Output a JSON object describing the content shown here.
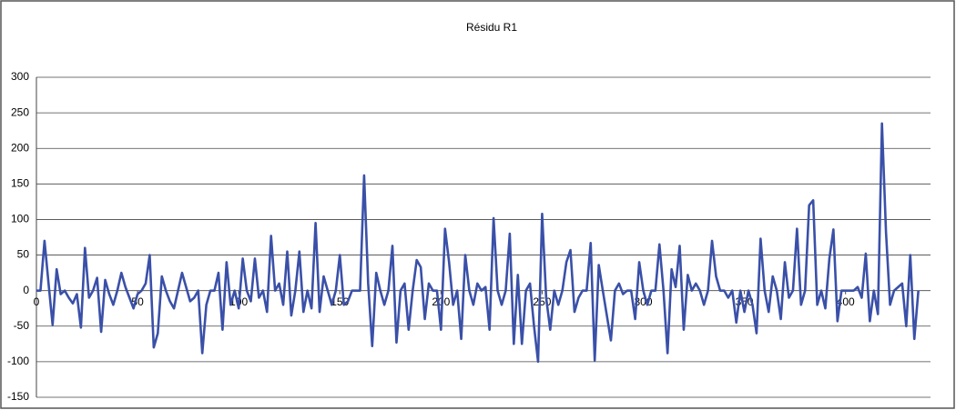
{
  "chart_data": {
    "type": "line",
    "title": "Résidu R1",
    "x": [
      0,
      2,
      4,
      6,
      8,
      10,
      12,
      14,
      16,
      18,
      20,
      22,
      24,
      26,
      28,
      30,
      32,
      34,
      36,
      38,
      40,
      42,
      44,
      46,
      48,
      50,
      52,
      54,
      56,
      58,
      60,
      62,
      64,
      66,
      68,
      70,
      72,
      74,
      76,
      78,
      80,
      82,
      84,
      86,
      88,
      90,
      92,
      94,
      96,
      98,
      100,
      102,
      104,
      106,
      108,
      110,
      112,
      114,
      116,
      118,
      120,
      122,
      124,
      126,
      128,
      130,
      132,
      134,
      136,
      138,
      140,
      142,
      144,
      146,
      148,
      150,
      152,
      154,
      156,
      158,
      160,
      162,
      164,
      166,
      168,
      170,
      172,
      174,
      176,
      178,
      180,
      182,
      184,
      186,
      188,
      190,
      192,
      194,
      196,
      198,
      200,
      202,
      204,
      206,
      208,
      210,
      212,
      214,
      216,
      218,
      220,
      222,
      224,
      226,
      228,
      230,
      232,
      234,
      236,
      238,
      240,
      242,
      244,
      246,
      248,
      250,
      252,
      254,
      256,
      258,
      260,
      262,
      264,
      266,
      268,
      270,
      272,
      274,
      276,
      278,
      280,
      282,
      284,
      286,
      288,
      290,
      292,
      294,
      296,
      298,
      300,
      302,
      304,
      306,
      308,
      310,
      312,
      314,
      316,
      318,
      320,
      322,
      324,
      326,
      328,
      330,
      332,
      334,
      336,
      338,
      340,
      342,
      344,
      346,
      348,
      350,
      352,
      354,
      356,
      358,
      360,
      362,
      364,
      366,
      368,
      370,
      372,
      374,
      376,
      378,
      380,
      382,
      384,
      386,
      388,
      390,
      392,
      394,
      396,
      398,
      400,
      402,
      404,
      406,
      408,
      410,
      412,
      414,
      416,
      418,
      420,
      422,
      424,
      426,
      428,
      430,
      432,
      434,
      436
    ],
    "series": [
      {
        "name": "Résidu R1",
        "color": "#3a50a8",
        "values": [
          0,
          0,
          70,
          10,
          -48,
          30,
          -5,
          0,
          -10,
          -18,
          -5,
          -52,
          60,
          -10,
          0,
          18,
          -58,
          15,
          -5,
          -20,
          0,
          25,
          5,
          -10,
          -25,
          -5,
          0,
          10,
          50,
          -80,
          -60,
          20,
          0,
          -15,
          -25,
          0,
          25,
          5,
          -15,
          -10,
          0,
          -88,
          -20,
          0,
          0,
          25,
          -55,
          40,
          -20,
          0,
          -25,
          45,
          0,
          -15,
          45,
          -10,
          0,
          -30,
          77,
          0,
          10,
          -20,
          55,
          -35,
          0,
          55,
          -30,
          0,
          -25,
          95,
          -30,
          20,
          0,
          -20,
          0,
          50,
          -20,
          -15,
          0,
          0,
          0,
          162,
          10,
          -78,
          25,
          0,
          -20,
          0,
          63,
          -73,
          0,
          10,
          -55,
          0,
          43,
          33,
          -40,
          10,
          0,
          0,
          -55,
          87,
          40,
          -20,
          0,
          -68,
          50,
          0,
          -20,
          10,
          0,
          5,
          -55,
          102,
          0,
          -20,
          0,
          80,
          -75,
          22,
          -75,
          0,
          10,
          -50,
          -100,
          108,
          -10,
          -55,
          0,
          -20,
          0,
          40,
          57,
          -30,
          -10,
          0,
          0,
          67,
          -98,
          36,
          0,
          -35,
          -70,
          0,
          10,
          -5,
          0,
          0,
          -40,
          40,
          0,
          -20,
          0,
          0,
          65,
          0,
          -88,
          30,
          5,
          63,
          -55,
          22,
          0,
          10,
          0,
          -20,
          0,
          70,
          20,
          0,
          0,
          -10,
          0,
          -45,
          0,
          -30,
          0,
          -20,
          -60,
          73,
          0,
          -30,
          20,
          0,
          -40,
          40,
          -10,
          0,
          87,
          -20,
          0,
          120,
          127,
          -20,
          0,
          -25,
          45,
          86,
          -43,
          0,
          0,
          0,
          0,
          5,
          -10,
          52,
          -43,
          0,
          -33,
          235,
          82,
          -20,
          0,
          5,
          10,
          -50,
          50,
          -68,
          0
        ]
      }
    ],
    "xlim": [
      0,
      442
    ],
    "xticks": [
      0,
      50,
      100,
      150,
      200,
      250,
      300,
      350,
      400
    ],
    "ylim": [
      -150,
      300
    ],
    "yticks": [
      -150,
      -100,
      -50,
      0,
      50,
      100,
      150,
      200,
      250,
      300
    ],
    "grid": true
  }
}
